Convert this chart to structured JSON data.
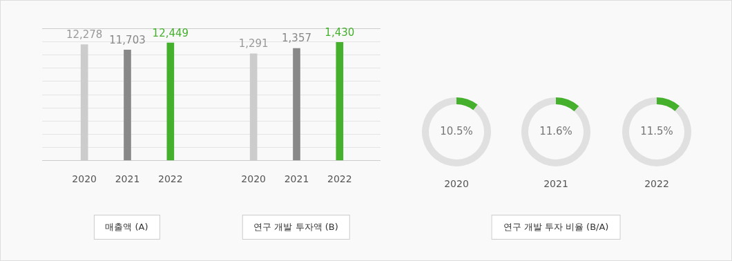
{
  "chart_data": [
    {
      "type": "bar",
      "categories": [
        "2020",
        "2021",
        "2022"
      ],
      "values": [
        12278,
        11703,
        12449
      ],
      "value_labels": [
        "12,278",
        "11,703",
        "12,449"
      ],
      "colors": [
        "#cccccc",
        "#888888",
        "#44b02c"
      ],
      "grid": "y",
      "tick_labels": "x",
      "xlabel": "매출액 (A)"
    },
    {
      "type": "bar",
      "categories": [
        "2020",
        "2021",
        "2022"
      ],
      "values": [
        1291,
        1357,
        1430
      ],
      "value_labels": [
        "1,291",
        "1,357",
        "1,430"
      ],
      "colors": [
        "#cccccc",
        "#888888",
        "#44b02c"
      ],
      "grid": "y",
      "tick_labels": "x",
      "xlabel": "연구 개발 투자액 (B)"
    },
    {
      "type": "donut",
      "categories": [
        null,
        null
      ],
      "values": [
        10.5,
        89.5
      ],
      "colors": [
        "#44b02c",
        "#e0e0e0"
      ],
      "value_labels": [
        "10.5%",
        null
      ],
      "xlabel": "2020"
    },
    {
      "type": "donut",
      "categories": [
        null,
        null
      ],
      "values": [
        11.6,
        88.4
      ],
      "colors": [
        "#44b02c",
        "#e0e0e0"
      ],
      "value_labels": [
        "11.6%",
        null
      ],
      "xlabel": "2021",
      "annotations": [
        "연구 개발 투자 비율 (B/A)"
      ]
    },
    {
      "type": "donut",
      "categories": [
        null,
        null
      ],
      "values": [
        11.5,
        88.5
      ],
      "colors": [
        "#44b02c",
        "#e0e0e0"
      ],
      "value_labels": [
        "11.5%",
        null
      ],
      "xlabel": "2022"
    }
  ]
}
